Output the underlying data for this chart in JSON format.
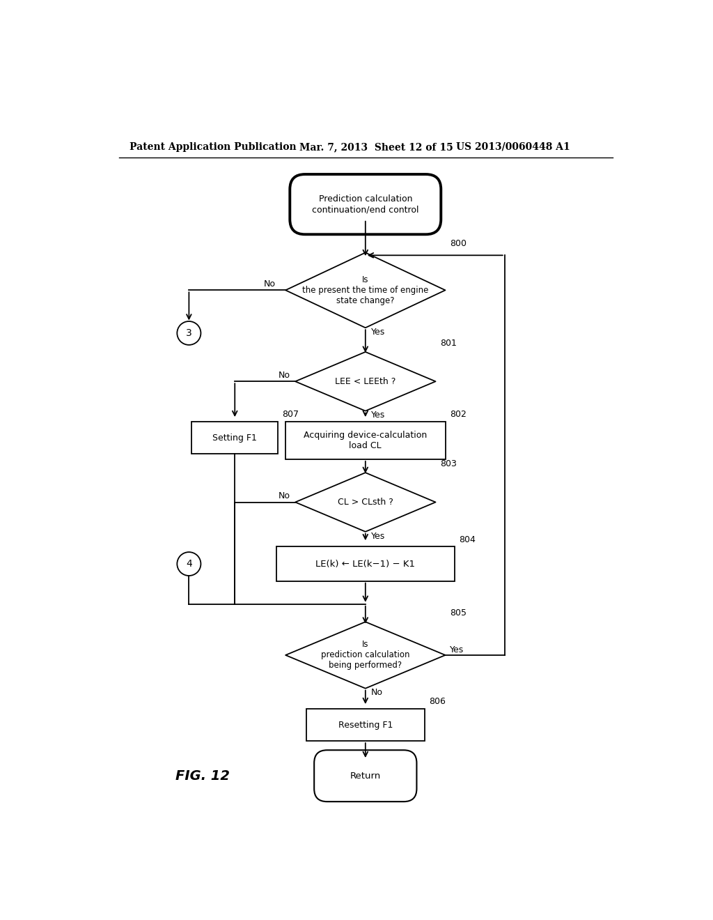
{
  "bg_color": "#ffffff",
  "header_left": "Patent Application Publication",
  "header_mid": "Mar. 7, 2013  Sheet 12 of 15",
  "header_right": "US 2013/0060448 A1",
  "fig_label": "FIG. 12",
  "lw": 1.3,
  "arrow_lw": 1.3
}
